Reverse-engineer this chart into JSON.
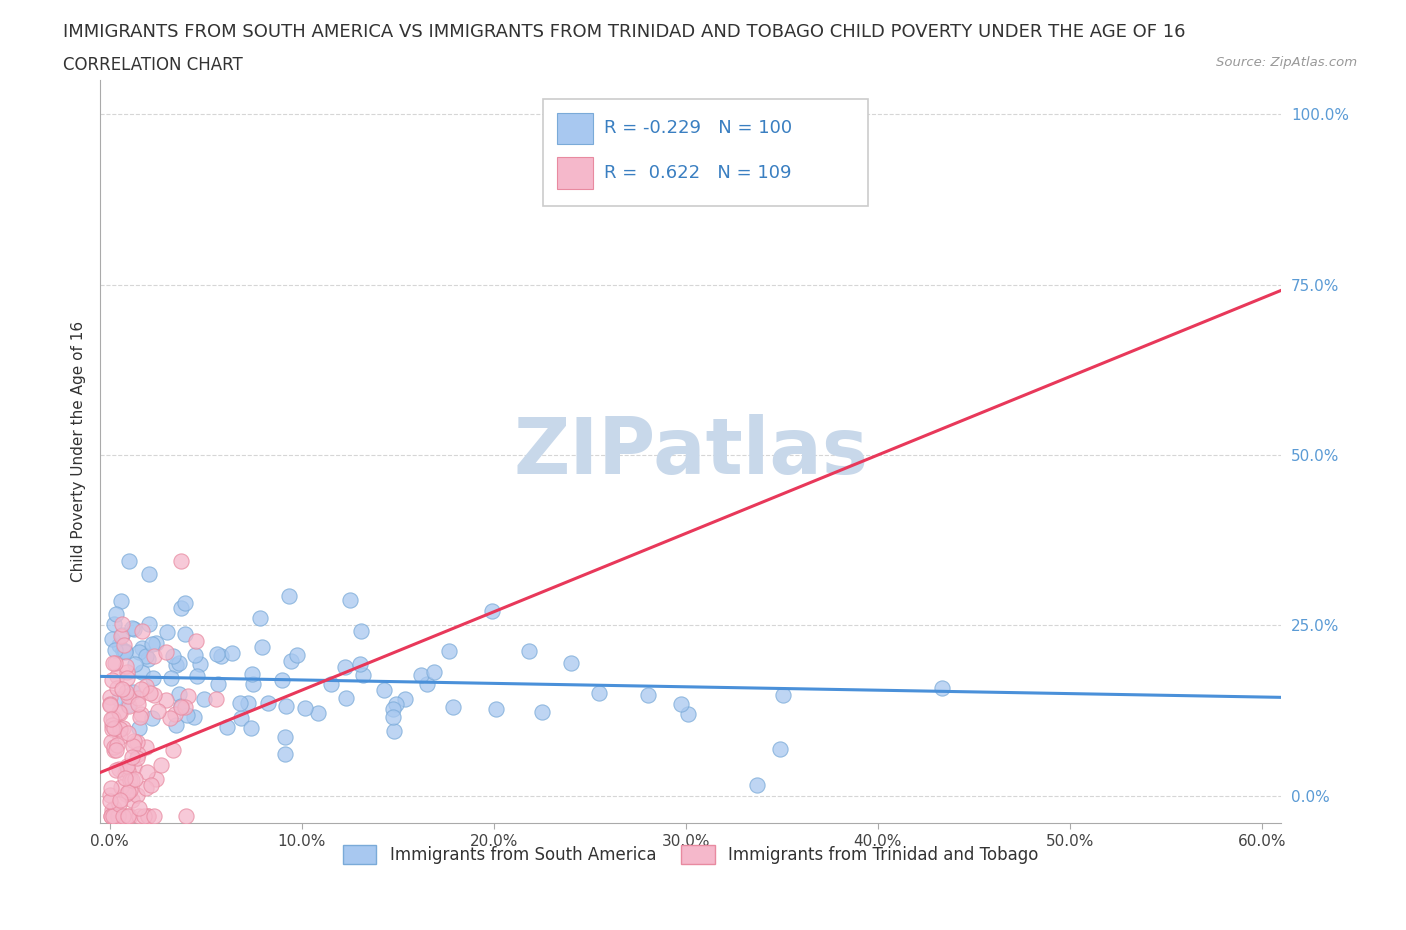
{
  "title": "IMMIGRANTS FROM SOUTH AMERICA VS IMMIGRANTS FROM TRINIDAD AND TOBAGO CHILD POVERTY UNDER THE AGE OF 16",
  "subtitle": "CORRELATION CHART",
  "source": "Source: ZipAtlas.com",
  "xlabel": "",
  "ylabel": "Child Poverty Under the Age of 16",
  "xlim": [
    -0.005,
    0.61
  ],
  "ylim": [
    -0.04,
    1.05
  ],
  "xticks": [
    0.0,
    0.1,
    0.2,
    0.3,
    0.4,
    0.5,
    0.6
  ],
  "xticklabels": [
    "0.0%",
    "10.0%",
    "20.0%",
    "30.0%",
    "40.0%",
    "50.0%",
    "60.0%"
  ],
  "yticks": [
    0.0,
    0.25,
    0.5,
    0.75,
    1.0
  ],
  "yticklabels": [
    "0.0%",
    "25.0%",
    "50.0%",
    "75.0%",
    "100.0%"
  ],
  "series1_color": "#A8C8F0",
  "series1_edge": "#7AAAD8",
  "series2_color": "#F5B8CB",
  "series2_edge": "#E88AA0",
  "trendline1_color": "#4A90D9",
  "trendline2_color": "#E8385A",
  "R1": -0.229,
  "N1": 100,
  "R2": 0.622,
  "N2": 109,
  "legend1_label": "Immigrants from South America",
  "legend2_label": "Immigrants from Trinidad and Tobago",
  "watermark": "ZIPatlas",
  "watermark_color": "#C8D8EA",
  "title_fontsize": 13,
  "subtitle_fontsize": 12,
  "axis_label_fontsize": 11,
  "tick_fontsize": 11,
  "legend_fontsize": 12,
  "seed": 42
}
